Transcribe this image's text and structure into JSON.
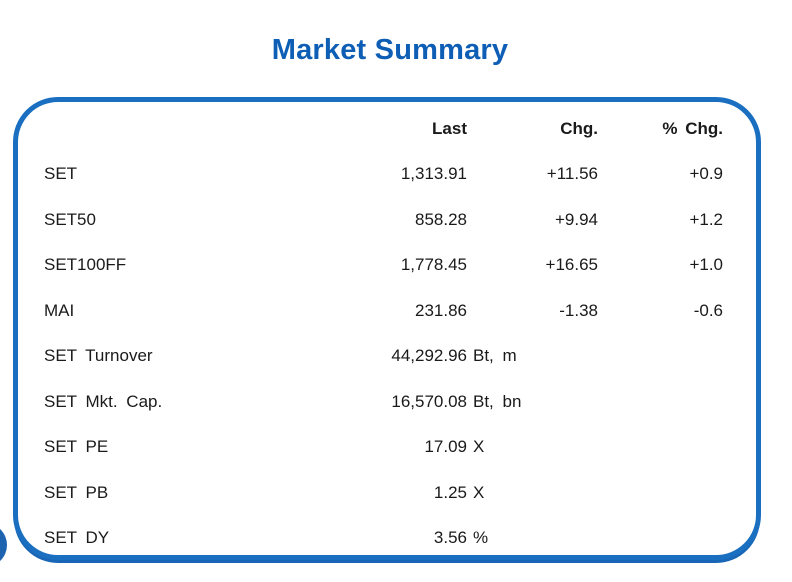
{
  "title": "Market Summary",
  "colors": {
    "accent_border": "#1b6fc0",
    "title_blue": "#0d5eb4",
    "circle_blue": "#1e63b0",
    "text": "#1a1a1a"
  },
  "table": {
    "headers": {
      "last": "Last",
      "chg": "Chg.",
      "pct": "% Chg."
    },
    "rows": [
      {
        "label": "SET",
        "last": "1,313.91",
        "unit": "",
        "chg": "+11.56",
        "pct": "+0.9"
      },
      {
        "label": "SET50",
        "last": "858.28",
        "unit": "",
        "chg": "+9.94",
        "pct": "+1.2"
      },
      {
        "label": "SET100FF",
        "last": "1,778.45",
        "unit": "",
        "chg": "+16.65",
        "pct": "+1.0"
      },
      {
        "label": "MAI",
        "last": "231.86",
        "unit": "",
        "chg": "-1.38",
        "pct": "-0.6"
      },
      {
        "label": "SET Turnover",
        "last": "44,292.96",
        "unit": "Bt, m",
        "chg": "",
        "pct": ""
      },
      {
        "label": "SET Mkt. Cap.",
        "last": "16,570.08",
        "unit": "Bt, bn",
        "chg": "",
        "pct": ""
      },
      {
        "label": "SET PE",
        "last": "17.09",
        "unit": "X",
        "chg": "",
        "pct": ""
      },
      {
        "label": "SET PB",
        "last": "1.25",
        "unit": "X",
        "chg": "",
        "pct": ""
      },
      {
        "label": "SET DY",
        "last": "3.56",
        "unit": "%",
        "chg": "",
        "pct": ""
      }
    ]
  },
  "chart_data": {
    "type": "table",
    "title": "Market Summary",
    "columns": [
      "",
      "Last",
      "Chg.",
      "% Chg."
    ],
    "rows": [
      [
        "SET",
        "1,313.91",
        "+11.56",
        "+0.9"
      ],
      [
        "SET50",
        "858.28",
        "+9.94",
        "+1.2"
      ],
      [
        "SET100FF",
        "1,778.45",
        "+16.65",
        "+1.0"
      ],
      [
        "MAI",
        "231.86",
        "-1.38",
        "-0.6"
      ],
      [
        "SET Turnover",
        "44,292.96 Bt, m",
        "",
        ""
      ],
      [
        "SET Mkt. Cap.",
        "16,570.08 Bt, bn",
        "",
        ""
      ],
      [
        "SET PE",
        "17.09 X",
        "",
        ""
      ],
      [
        "SET PB",
        "1.25 X",
        "",
        ""
      ],
      [
        "SET DY",
        "3.56 %",
        "",
        ""
      ]
    ]
  }
}
